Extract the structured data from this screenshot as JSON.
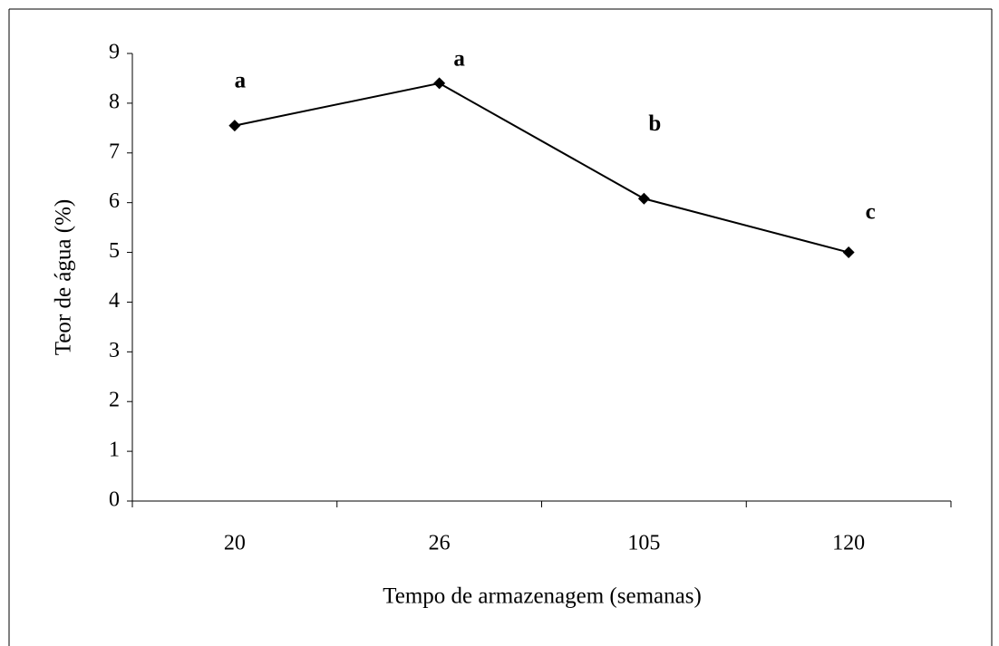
{
  "chart_data": {
    "type": "line",
    "x_label": "Tempo de armazenagem (semanas)",
    "y_label": "Teor de água (%)",
    "categories": [
      "20",
      "26",
      "105",
      "120"
    ],
    "series": [
      {
        "color": "#000000",
        "values": [
          7.55,
          8.4,
          6.08,
          5.0
        ]
      }
    ],
    "point_labels": [
      "a",
      "a",
      "b",
      "c"
    ],
    "ylim": [
      0,
      9
    ],
    "yticks": [
      0,
      1,
      2,
      3,
      4,
      5,
      6,
      7,
      8,
      9
    ],
    "grid": false
  }
}
